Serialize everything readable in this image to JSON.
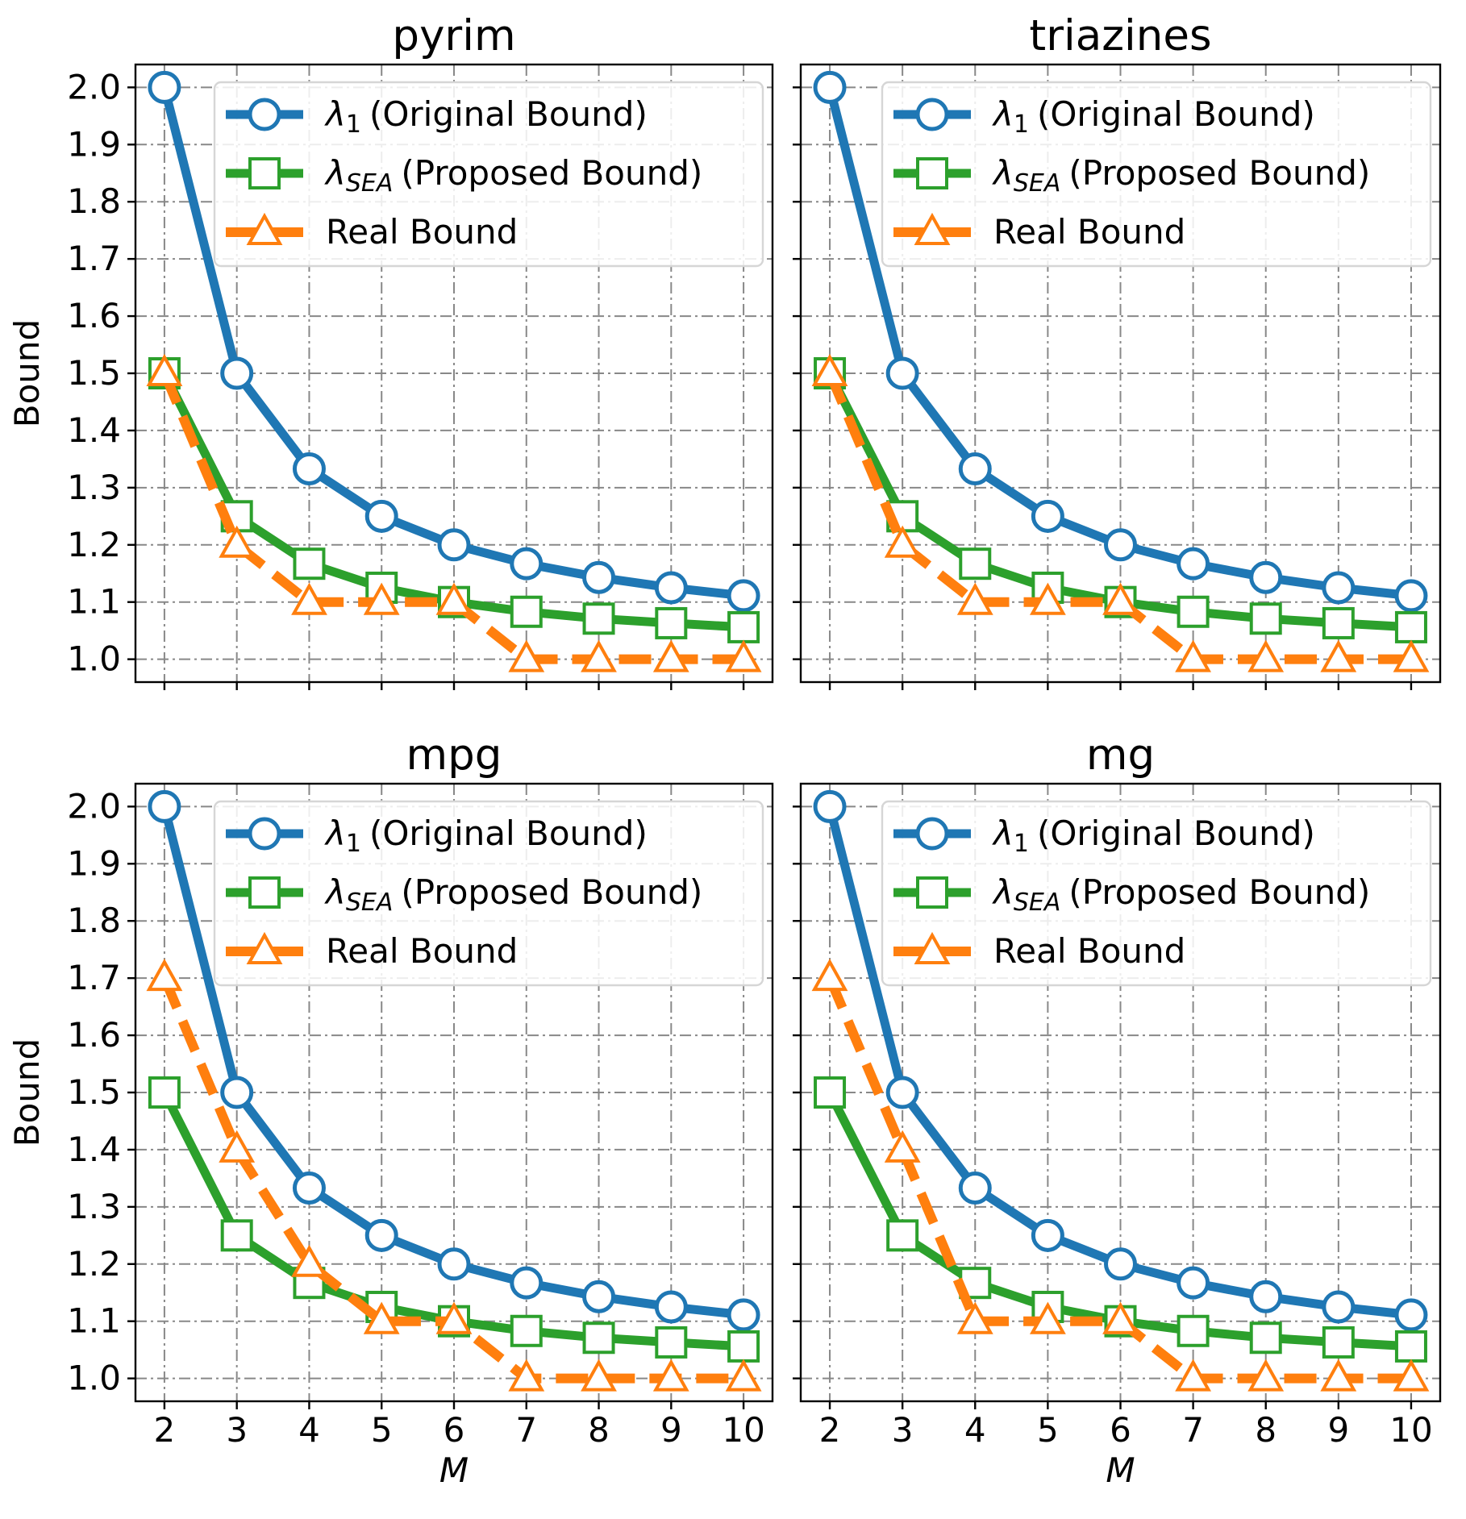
{
  "chart_data": [
    {
      "type": "line",
      "title": "pyrim",
      "xlabel": "M",
      "ylabel": "Bound",
      "x": [
        2,
        3,
        4,
        5,
        6,
        7,
        8,
        9,
        10
      ],
      "xlim": [
        1.6,
        10.4
      ],
      "ylim": [
        0.96,
        2.04
      ],
      "xticks": [
        "2",
        "3",
        "4",
        "5",
        "6",
        "7",
        "8",
        "9",
        "10"
      ],
      "yticks": [
        "1.0",
        "1.1",
        "1.2",
        "1.3",
        "1.4",
        "1.5",
        "1.6",
        "1.7",
        "1.8",
        "1.9",
        "2.0"
      ],
      "grid": true,
      "legend_position": "top-right",
      "series": [
        {
          "name": "λ1 (Original Bound)",
          "legend_main": "λ",
          "legend_sub": "1",
          "legend_text": "(Original Bound)",
          "color": "#1f77b4",
          "marker": "circle",
          "linestyle": "solid",
          "values": [
            2.0,
            1.5,
            1.333,
            1.25,
            1.2,
            1.167,
            1.143,
            1.125,
            1.111
          ]
        },
        {
          "name": "λSEA (Proposed Bound)",
          "legend_main": "λ",
          "legend_sub": "SEA",
          "legend_text": "(Proposed Bound)",
          "color": "#2ca02c",
          "marker": "square",
          "linestyle": "solid",
          "values": [
            1.5,
            1.25,
            1.167,
            1.125,
            1.1,
            1.083,
            1.071,
            1.063,
            1.056
          ]
        },
        {
          "name": "Real Bound",
          "legend_main": "",
          "legend_sub": "",
          "legend_text": "Real Bound",
          "color": "#ff7f0e",
          "marker": "triangle",
          "linestyle": "dashed",
          "values": [
            1.5,
            1.2,
            1.1,
            1.1,
            1.1,
            1.0,
            1.0,
            1.0,
            1.0
          ]
        }
      ]
    },
    {
      "type": "line",
      "title": "triazines",
      "xlabel": "M",
      "ylabel": "Bound",
      "x": [
        2,
        3,
        4,
        5,
        6,
        7,
        8,
        9,
        10
      ],
      "xlim": [
        1.6,
        10.4
      ],
      "ylim": [
        0.96,
        2.04
      ],
      "xticks": [
        "2",
        "3",
        "4",
        "5",
        "6",
        "7",
        "8",
        "9",
        "10"
      ],
      "yticks": [
        "1.0",
        "1.1",
        "1.2",
        "1.3",
        "1.4",
        "1.5",
        "1.6",
        "1.7",
        "1.8",
        "1.9",
        "2.0"
      ],
      "grid": true,
      "legend_position": "top-right",
      "series": [
        {
          "name": "λ1 (Original Bound)",
          "legend_main": "λ",
          "legend_sub": "1",
          "legend_text": "(Original Bound)",
          "color": "#1f77b4",
          "marker": "circle",
          "linestyle": "solid",
          "values": [
            2.0,
            1.5,
            1.333,
            1.25,
            1.2,
            1.167,
            1.143,
            1.125,
            1.111
          ]
        },
        {
          "name": "λSEA (Proposed Bound)",
          "legend_main": "λ",
          "legend_sub": "SEA",
          "legend_text": "(Proposed Bound)",
          "color": "#2ca02c",
          "marker": "square",
          "linestyle": "solid",
          "values": [
            1.5,
            1.25,
            1.167,
            1.125,
            1.1,
            1.083,
            1.071,
            1.063,
            1.056
          ]
        },
        {
          "name": "Real Bound",
          "legend_main": "",
          "legend_sub": "",
          "legend_text": "Real Bound",
          "color": "#ff7f0e",
          "marker": "triangle",
          "linestyle": "dashed",
          "values": [
            1.5,
            1.2,
            1.1,
            1.1,
            1.1,
            1.0,
            1.0,
            1.0,
            1.0
          ]
        }
      ]
    },
    {
      "type": "line",
      "title": "mpg",
      "xlabel": "M",
      "ylabel": "Bound",
      "x": [
        2,
        3,
        4,
        5,
        6,
        7,
        8,
        9,
        10
      ],
      "xlim": [
        1.6,
        10.4
      ],
      "ylim": [
        0.96,
        2.04
      ],
      "xticks": [
        "2",
        "3",
        "4",
        "5",
        "6",
        "7",
        "8",
        "9",
        "10"
      ],
      "yticks": [
        "1.0",
        "1.1",
        "1.2",
        "1.3",
        "1.4",
        "1.5",
        "1.6",
        "1.7",
        "1.8",
        "1.9",
        "2.0"
      ],
      "grid": true,
      "legend_position": "top-right",
      "series": [
        {
          "name": "λ1 (Original Bound)",
          "legend_main": "λ",
          "legend_sub": "1",
          "legend_text": "(Original Bound)",
          "color": "#1f77b4",
          "marker": "circle",
          "linestyle": "solid",
          "values": [
            2.0,
            1.5,
            1.333,
            1.25,
            1.2,
            1.167,
            1.143,
            1.125,
            1.111
          ]
        },
        {
          "name": "λSEA (Proposed Bound)",
          "legend_main": "λ",
          "legend_sub": "SEA",
          "legend_text": "(Proposed Bound)",
          "color": "#2ca02c",
          "marker": "square",
          "linestyle": "solid",
          "values": [
            1.5,
            1.25,
            1.167,
            1.125,
            1.1,
            1.083,
            1.071,
            1.063,
            1.056
          ]
        },
        {
          "name": "Real Bound",
          "legend_main": "",
          "legend_sub": "",
          "legend_text": "Real Bound",
          "color": "#ff7f0e",
          "marker": "triangle",
          "linestyle": "dashed",
          "values": [
            1.7,
            1.4,
            1.2,
            1.1,
            1.1,
            1.0,
            1.0,
            1.0,
            1.0
          ]
        }
      ]
    },
    {
      "type": "line",
      "title": "mg",
      "xlabel": "M",
      "ylabel": "Bound",
      "x": [
        2,
        3,
        4,
        5,
        6,
        7,
        8,
        9,
        10
      ],
      "xlim": [
        1.6,
        10.4
      ],
      "ylim": [
        0.96,
        2.04
      ],
      "xticks": [
        "2",
        "3",
        "4",
        "5",
        "6",
        "7",
        "8",
        "9",
        "10"
      ],
      "yticks": [
        "1.0",
        "1.1",
        "1.2",
        "1.3",
        "1.4",
        "1.5",
        "1.6",
        "1.7",
        "1.8",
        "1.9",
        "2.0"
      ],
      "grid": true,
      "legend_position": "top-right",
      "series": [
        {
          "name": "λ1 (Original Bound)",
          "legend_main": "λ",
          "legend_sub": "1",
          "legend_text": "(Original Bound)",
          "color": "#1f77b4",
          "marker": "circle",
          "linestyle": "solid",
          "values": [
            2.0,
            1.5,
            1.333,
            1.25,
            1.2,
            1.167,
            1.143,
            1.125,
            1.111
          ]
        },
        {
          "name": "λSEA (Proposed Bound)",
          "legend_main": "λ",
          "legend_sub": "SEA",
          "legend_text": "(Proposed Bound)",
          "color": "#2ca02c",
          "marker": "square",
          "linestyle": "solid",
          "values": [
            1.5,
            1.25,
            1.167,
            1.125,
            1.1,
            1.083,
            1.071,
            1.063,
            1.056
          ]
        },
        {
          "name": "Real Bound",
          "legend_main": "",
          "legend_sub": "",
          "legend_text": "Real Bound",
          "color": "#ff7f0e",
          "marker": "triangle",
          "linestyle": "dashed",
          "values": [
            1.7,
            1.4,
            1.1,
            1.1,
            1.1,
            1.0,
            1.0,
            1.0,
            1.0
          ]
        }
      ]
    }
  ]
}
